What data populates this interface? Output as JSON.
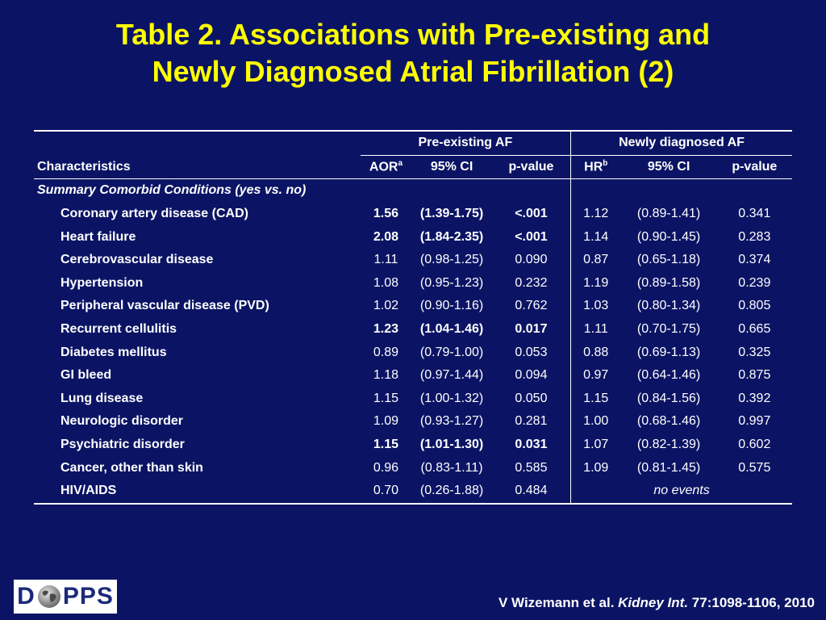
{
  "title": {
    "line1": "Table 2. Associations with Pre-existing and",
    "line2": "Newly Diagnosed Atrial Fibrillation (2)"
  },
  "table": {
    "group_headers": {
      "pre": "Pre-existing AF",
      "new": "Newly diagnosed AF"
    },
    "col_headers": {
      "characteristics": "Characteristics",
      "aor": "AOR",
      "aor_sup": "a",
      "ci1": "95% CI",
      "p1": "p-value",
      "hr": "HR",
      "hr_sup": "b",
      "ci2": "95% CI",
      "p2": "p-value"
    },
    "section_label": "Summary Comorbid Conditions (yes vs. no)",
    "rows": [
      {
        "label": "Coronary artery disease (CAD)",
        "aor": "1.56",
        "ci1": "(1.39-1.75)",
        "p1": "<.001",
        "hr": "1.12",
        "ci2": "(0.89-1.41)",
        "p2": "0.341",
        "sig": true
      },
      {
        "label": "Heart failure",
        "aor": "2.08",
        "ci1": "(1.84-2.35)",
        "p1": "<.001",
        "hr": "1.14",
        "ci2": "(0.90-1.45)",
        "p2": "0.283",
        "sig": true
      },
      {
        "label": "Cerebrovascular disease",
        "aor": "1.11",
        "ci1": "(0.98-1.25)",
        "p1": "0.090",
        "hr": "0.87",
        "ci2": "(0.65-1.18)",
        "p2": "0.374",
        "sig": false
      },
      {
        "label": "Hypertension",
        "aor": "1.08",
        "ci1": "(0.95-1.23)",
        "p1": "0.232",
        "hr": "1.19",
        "ci2": "(0.89-1.58)",
        "p2": "0.239",
        "sig": false
      },
      {
        "label": "Peripheral vascular disease (PVD)",
        "aor": "1.02",
        "ci1": "(0.90-1.16)",
        "p1": "0.762",
        "hr": "1.03",
        "ci2": "(0.80-1.34)",
        "p2": "0.805",
        "sig": false
      },
      {
        "label": "Recurrent cellulitis",
        "aor": "1.23",
        "ci1": "(1.04-1.46)",
        "p1": "0.017",
        "hr": "1.11",
        "ci2": "(0.70-1.75)",
        "p2": "0.665",
        "sig": true
      },
      {
        "label": "Diabetes mellitus",
        "aor": "0.89",
        "ci1": "(0.79-1.00)",
        "p1": "0.053",
        "hr": "0.88",
        "ci2": "(0.69-1.13)",
        "p2": "0.325",
        "sig": false
      },
      {
        "label": "GI bleed",
        "aor": "1.18",
        "ci1": "(0.97-1.44)",
        "p1": "0.094",
        "hr": "0.97",
        "ci2": "(0.64-1.46)",
        "p2": "0.875",
        "sig": false
      },
      {
        "label": "Lung disease",
        "aor": "1.15",
        "ci1": "(1.00-1.32)",
        "p1": "0.050",
        "hr": "1.15",
        "ci2": "(0.84-1.56)",
        "p2": "0.392",
        "sig": false
      },
      {
        "label": "Neurologic disorder",
        "aor": "1.09",
        "ci1": "(0.93-1.27)",
        "p1": "0.281",
        "hr": "1.00",
        "ci2": "(0.68-1.46)",
        "p2": "0.997",
        "sig": false
      },
      {
        "label": "Psychiatric disorder",
        "aor": "1.15",
        "ci1": "(1.01-1.30)",
        "p1": "0.031",
        "hr": "1.07",
        "ci2": "(0.82-1.39)",
        "p2": "0.602",
        "sig": true
      },
      {
        "label": "Cancer, other than skin",
        "aor": "0.96",
        "ci1": "(0.83-1.11)",
        "p1": "0.585",
        "hr": "1.09",
        "ci2": "(0.81-1.45)",
        "p2": "0.575",
        "sig": false
      },
      {
        "label": "HIV/AIDS",
        "aor": "0.70",
        "ci1": "(0.26-1.88)",
        "p1": "0.484",
        "no_events": "no events",
        "sig": false
      }
    ]
  },
  "logo": {
    "text_left": "D",
    "text_right": "PPS",
    "icon": "globe-icon"
  },
  "citation": {
    "authors": "V Wizemann et al.",
    "journal": "Kidney Int.",
    "ref": "77:1098-1106, 2010"
  },
  "colors": {
    "background": "#0b1464",
    "title": "#ffff00",
    "text": "#ffffff"
  }
}
